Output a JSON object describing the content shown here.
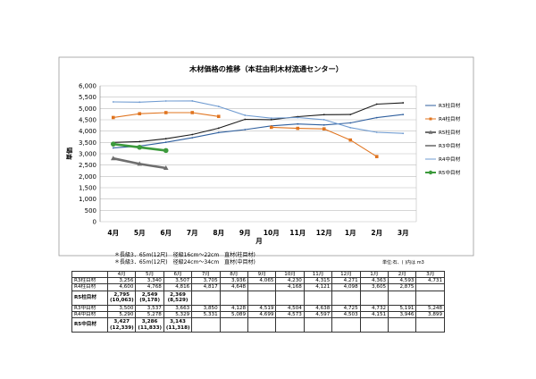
{
  "chart_data": {
    "type": "line",
    "title": "木材価格の推移（本荘由利木材流通センター）",
    "xlabel": "月",
    "ylabel": "単価",
    "ylim": [
      0,
      6000
    ],
    "yticks": [
      "0",
      "500",
      "1,000",
      "1,500",
      "2,000",
      "2,500",
      "3,000",
      "3,500",
      "4,000",
      "4,500",
      "5,000",
      "5,500",
      "6,000"
    ],
    "grid": true,
    "legend_position": "right",
    "categories": [
      "4月",
      "5月",
      "6月",
      "7月",
      "8月",
      "9月",
      "10月",
      "11月",
      "12月",
      "1月",
      "2月",
      "3月"
    ],
    "series": [
      {
        "name": "R3柱目材",
        "color": "#2f5f9e",
        "marker": "none",
        "values": [
          3256,
          3340,
          3507,
          3705,
          3936,
          4065,
          4230,
          4315,
          4271,
          4363,
          4593,
          4731
        ]
      },
      {
        "name": "R4柱目材",
        "color": "#e0741f",
        "marker": "square",
        "values": [
          4600,
          4768,
          4816,
          4817,
          4648,
          null,
          4168,
          4121,
          4098,
          3605,
          2875,
          null
        ]
      },
      {
        "name": "R5柱目材",
        "color": "#6e6e6e",
        "marker": "triangle",
        "bold": true,
        "values": [
          2795,
          2549,
          2369,
          null,
          null,
          null,
          null,
          null,
          null,
          null,
          null,
          null
        ]
      },
      {
        "name": "R3中目材",
        "color": "#1a1a1a",
        "marker": "none",
        "values": [
          3500,
          3537,
          3663,
          3850,
          4128,
          4519,
          4504,
          4638,
          4725,
          4732,
          5191,
          5248
        ]
      },
      {
        "name": "R4中目材",
        "color": "#6f9bd1",
        "marker": "none",
        "values": [
          5290,
          5278,
          5329,
          5331,
          5089,
          4699,
          4573,
          4597,
          4503,
          4151,
          3946,
          3899
        ]
      },
      {
        "name": "R5中目材",
        "color": "#3c9a3c",
        "marker": "circle",
        "bold": true,
        "values": [
          3427,
          3286,
          3143,
          null,
          null,
          null,
          null,
          null,
          null,
          null,
          null,
          null
        ]
      }
    ]
  },
  "notes": {
    "line1": "＊長級3．65m(12尺)　径級16cm～22cm　直材(柱目材)",
    "line2": "＊長級3．65m(12尺)　径級24cm～34cm　直材(中目材)",
    "unit": "単位:石、( )内は m3"
  },
  "table": {
    "headers": [
      "",
      "4月",
      "5月",
      "6月",
      "7月",
      "8月",
      "9月",
      "10月",
      "11月",
      "12月",
      "1月",
      "2月",
      "3月"
    ],
    "rows": [
      {
        "label": "R3柱目材",
        "cells": [
          "3,256",
          "3,340",
          "3,507",
          "3,705",
          "3,936",
          "4,065",
          "4,230",
          "4,315",
          "4,271",
          "4,363",
          "4,593",
          "4,731"
        ]
      },
      {
        "label": "R4柱目材",
        "cells": [
          "4,600",
          "4,768",
          "4,816",
          "4,817",
          "4,648",
          "",
          "4,168",
          "4,121",
          "4,098",
          "3,605",
          "2,875",
          ""
        ]
      },
      {
        "label": "R5柱目材",
        "tall": true,
        "bold": true,
        "cells": [
          "2,795",
          "2,549",
          "2,369",
          "",
          "",
          "",
          "",
          "",
          "",
          "",
          "",
          ""
        ],
        "subs": [
          "(10,063)",
          "(9,178)",
          "(8,529)",
          "",
          "",
          "",
          "",
          "",
          "",
          "",
          "",
          ""
        ]
      },
      {
        "label": "R3中目材",
        "cells": [
          "3,500",
          "3,537",
          "3,663",
          "3,850",
          "4,128",
          "4,519",
          "4,504",
          "4,638",
          "4,725",
          "4,732",
          "5,191",
          "5,248"
        ]
      },
      {
        "label": "R4中目材",
        "cells": [
          "5,290",
          "5,278",
          "5,329",
          "5,331",
          "5,089",
          "4,699",
          "4,573",
          "4,597",
          "4,503",
          "4,151",
          "3,946",
          "3,899"
        ]
      },
      {
        "label": "R5中目材",
        "tall": true,
        "bold": true,
        "cells": [
          "3,427",
          "3,286",
          "3,143",
          "",
          "",
          "",
          "",
          "",
          "",
          "",
          "",
          ""
        ],
        "subs": [
          "(12,339)",
          "(11,833)",
          "(11,318)",
          "",
          "",
          "",
          "",
          "",
          "",
          "",
          "",
          ""
        ]
      }
    ]
  }
}
